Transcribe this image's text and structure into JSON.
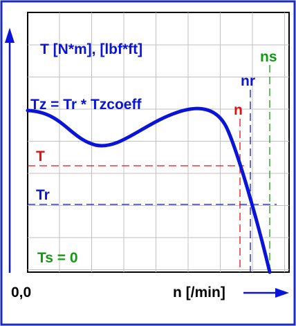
{
  "labels": {
    "y_axis": "T [N*m], [lbf*ft]",
    "x_axis": "n [/min]",
    "origin": "0,0",
    "formula": "Tz = Tr * Tzcoeff",
    "torque_line": "T",
    "rated_torque_line": "Tr",
    "starting_torque": "Ts = 0",
    "speed_n": "n",
    "speed_nr": "nr",
    "speed_ns": "ns"
  },
  "colors": {
    "curve": "#0a14d8",
    "frame": "#1a2bbf",
    "grid": "#bfbfbf",
    "red": "#e01010",
    "blue": "#0a14d8",
    "green": "#139a13"
  }
}
